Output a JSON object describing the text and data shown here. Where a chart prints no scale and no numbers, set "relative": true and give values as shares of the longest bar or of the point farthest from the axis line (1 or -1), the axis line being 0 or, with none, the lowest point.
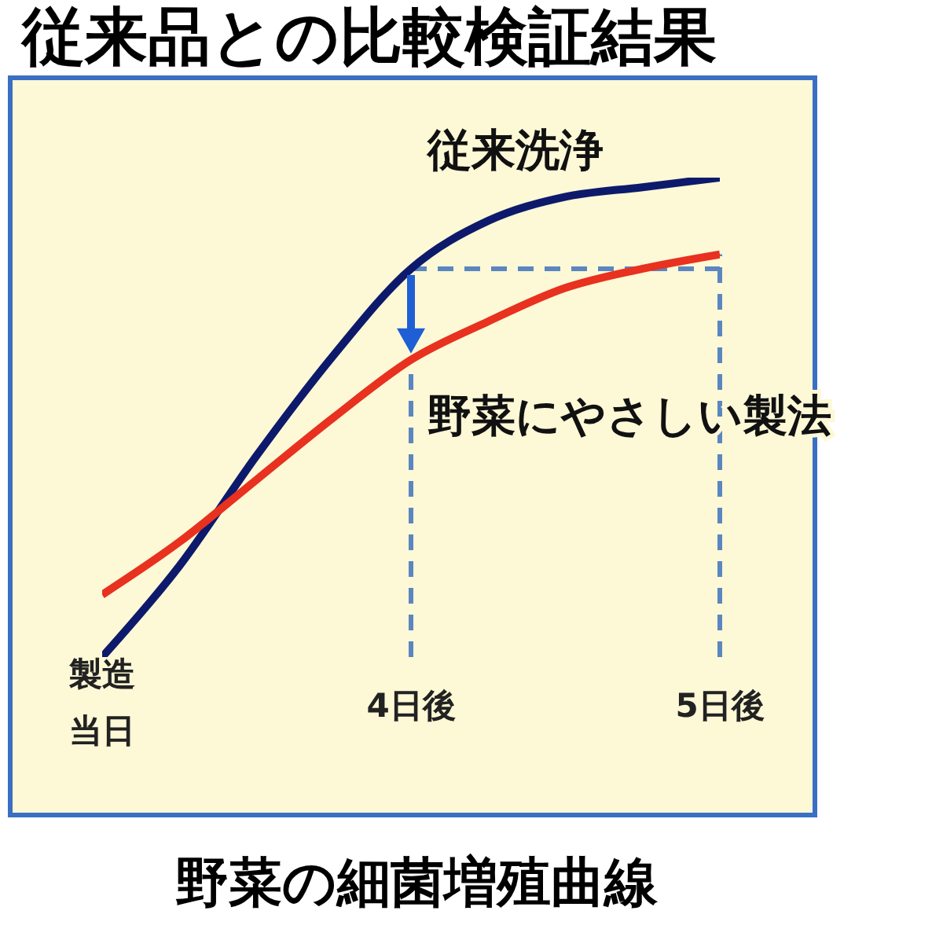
{
  "chart_data": {
    "type": "line",
    "relative": true,
    "title": "従来品との比較検証結果",
    "xlabel": "野菜の細菌増殖曲線",
    "categories": [
      "製造当日",
      null,
      null,
      null,
      "4日後",
      null,
      null,
      null,
      "5日後"
    ],
    "series": [
      {
        "name": "従来洗浄",
        "color": "#0d1a6b",
        "values": [
          0,
          0.19,
          0.42,
          0.63,
          0.81,
          0.91,
          0.96,
          0.98,
          1
        ]
      },
      {
        "name": "野菜にやさしい製法",
        "color": "#e8311f",
        "values": [
          0.13,
          0.24,
          0.37,
          0.5,
          0.62,
          0.7,
          0.77,
          0.81,
          0.84
        ]
      }
    ],
    "ref_lines": [
      {
        "axis": "x",
        "value": "4日後",
        "color": "#5b86c0",
        "line_style": "dashed"
      },
      {
        "axis": "x",
        "value": "5日後",
        "color": "#5b86c0",
        "line_style": "dashed"
      },
      {
        "axis": "y",
        "value": 0.81,
        "color": "#5b86c0",
        "line_style": "dashed"
      }
    ],
    "marker": "none",
    "line_style": "solid"
  }
}
